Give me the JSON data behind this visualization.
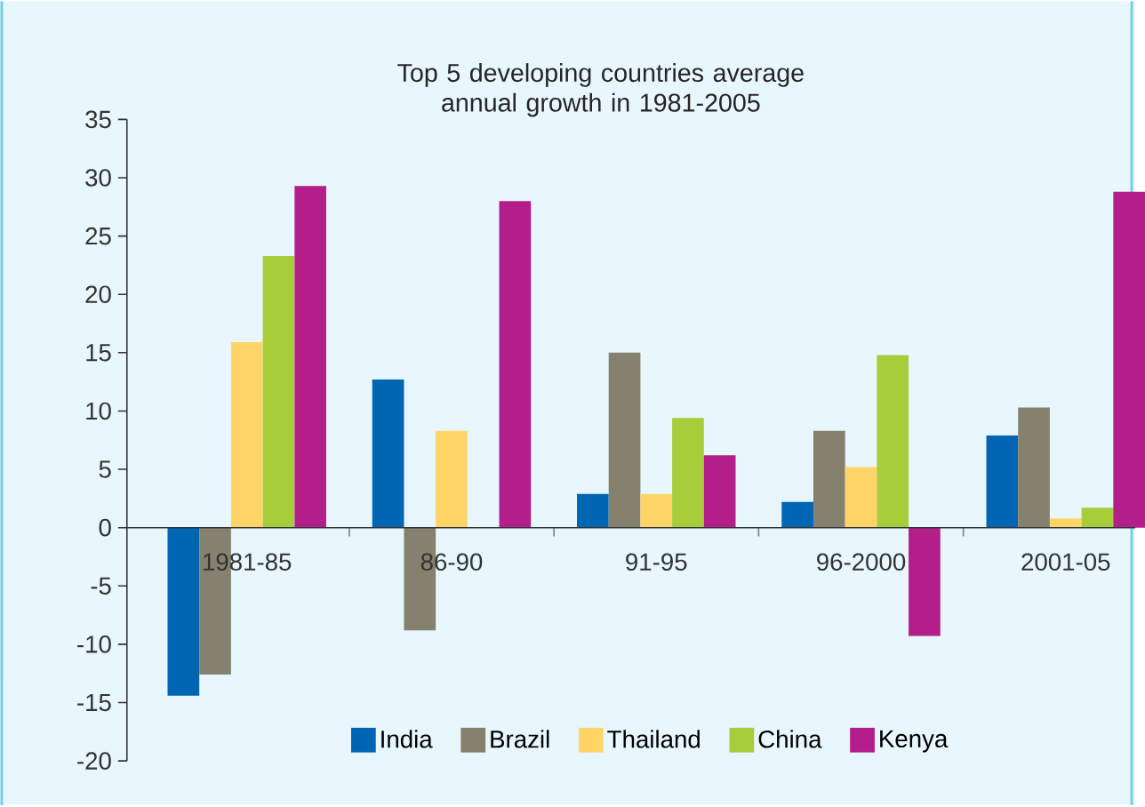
{
  "chart_data": {
    "type": "bar",
    "title": "Top 5 developing countries average annual growth in 1981-2005",
    "categories": [
      "1981-85",
      "86-90",
      "91-95",
      "96-2000",
      "2001-05"
    ],
    "series": [
      {
        "name": "India",
        "color": "#0066b3",
        "values": [
          -14.4,
          12.7,
          2.9,
          2.2,
          7.9
        ]
      },
      {
        "name": "Brazil",
        "color": "#85816e",
        "values": [
          -12.6,
          -8.8,
          15.0,
          8.3,
          10.3
        ]
      },
      {
        "name": "Thailand",
        "color": "#ffd466",
        "values": [
          15.9,
          8.3,
          2.9,
          5.2,
          0.8
        ]
      },
      {
        "name": "China",
        "color": "#a8cd3a",
        "values": [
          23.3,
          0,
          9.4,
          14.8,
          1.7
        ]
      },
      {
        "name": "Kenya",
        "color": "#b41e8a",
        "values": [
          29.3,
          28.0,
          6.2,
          -9.3,
          28.8
        ]
      }
    ],
    "ylim": [
      -20,
      35
    ],
    "yticks": [
      -20,
      -15,
      -10,
      -5,
      0,
      5,
      10,
      15,
      20,
      25,
      30,
      35
    ],
    "grid": false,
    "legend": "bottom"
  }
}
